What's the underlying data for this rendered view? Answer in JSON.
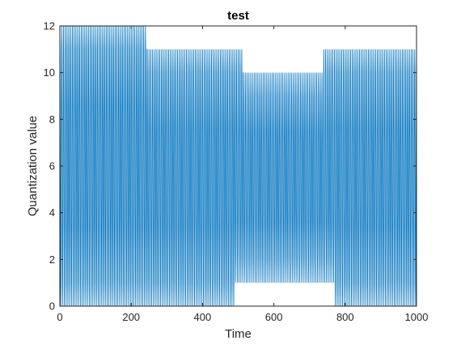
{
  "chart_data": {
    "type": "line",
    "title": "test",
    "xlabel": "Time",
    "ylabel": "Quantization value",
    "xlim": [
      0,
      1000
    ],
    "ylim": [
      0,
      12
    ],
    "xticks": [
      0,
      200,
      400,
      600,
      800,
      1000
    ],
    "yticks": [
      0,
      2,
      4,
      6,
      8,
      10,
      12
    ],
    "grid": false,
    "line_color": "#0072bd",
    "series": [
      {
        "x_range": [
          0,
          1000
        ],
        "period": 5,
        "center": 5.5,
        "envelope": [
          {
            "x": [
              0,
              245
            ],
            "y_max": 12,
            "y_min": 0
          },
          {
            "x": [
              245,
              490
            ],
            "y_max": 11,
            "y_min": 0
          },
          {
            "x": [
              490,
              515
            ],
            "y_max": 11,
            "y_min": 1
          },
          {
            "x": [
              515,
              740
            ],
            "y_max": 10,
            "y_min": 1
          },
          {
            "x": [
              740,
              770
            ],
            "y_max": 11,
            "y_min": 1
          },
          {
            "x": [
              770,
              1000
            ],
            "y_max": 11,
            "y_min": 0
          }
        ]
      }
    ]
  }
}
